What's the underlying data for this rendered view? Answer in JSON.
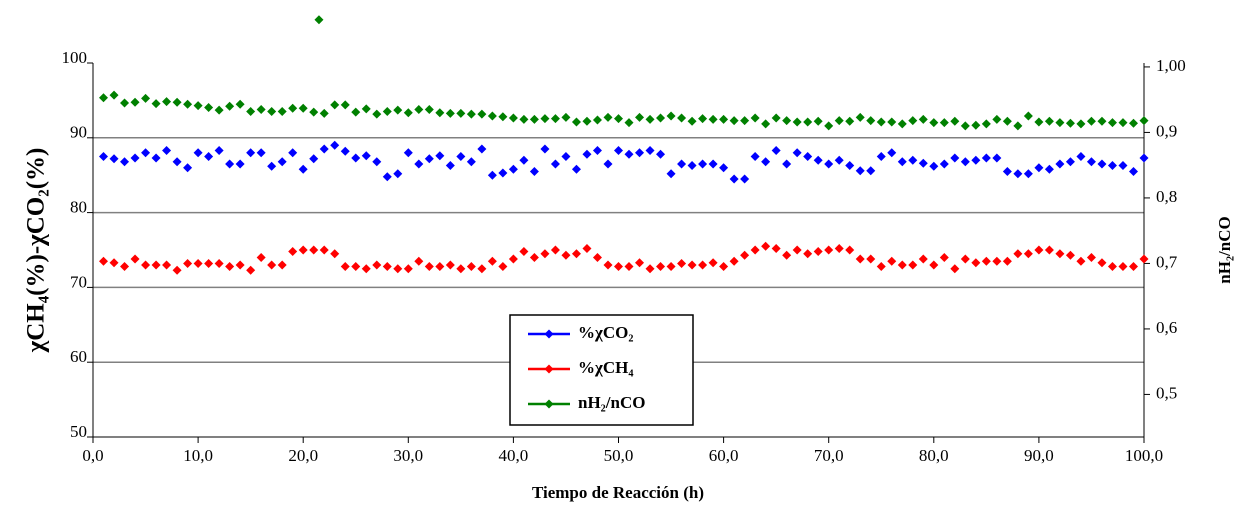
{
  "chart_data": {
    "type": "scatter",
    "x_label": "Tiempo de Reacción (h)",
    "y_label": "χCH₄(%)-χCO₂(%)",
    "y2_label": "nH₂/nCO",
    "xlim": [
      0,
      100
    ],
    "xticks": [
      {
        "value": 0,
        "label": "0,0"
      },
      {
        "value": 10,
        "label": "10,0"
      },
      {
        "value": 20,
        "label": "20,0"
      },
      {
        "value": 30,
        "label": "30,0"
      },
      {
        "value": 40,
        "label": "40,0"
      },
      {
        "value": 50,
        "label": "50,0"
      },
      {
        "value": 60,
        "label": "60,0"
      },
      {
        "value": 70,
        "label": "70,0"
      },
      {
        "value": 80,
        "label": "80,0"
      },
      {
        "value": 90,
        "label": "90,0"
      },
      {
        "value": 100,
        "label": "100,0"
      }
    ],
    "ylim": [
      50,
      100
    ],
    "yticks": [
      50,
      60,
      70,
      80,
      90,
      100
    ],
    "y2lim": [
      0.435,
      1.006
    ],
    "y2ticks": [
      {
        "value": 0.5,
        "label": "0,5"
      },
      {
        "value": 0.6,
        "label": "0,6"
      },
      {
        "value": 0.7,
        "label": "0,7"
      },
      {
        "value": 0.8,
        "label": "0,8"
      },
      {
        "value": 0.9,
        "label": "0,9"
      },
      {
        "value": 1.0,
        "label": "1,00"
      }
    ],
    "grid": true,
    "x": [
      1,
      2,
      3,
      4,
      5,
      6,
      7,
      8,
      9,
      10,
      11,
      12,
      13,
      14,
      15,
      16,
      17,
      18,
      19,
      20,
      21,
      22,
      23,
      24,
      25,
      26,
      27,
      28,
      29,
      30,
      31,
      32,
      33,
      34,
      35,
      36,
      37,
      38,
      39,
      40,
      41,
      42,
      43,
      44,
      45,
      46,
      47,
      48,
      49,
      50,
      51,
      52,
      53,
      54,
      55,
      56,
      57,
      58,
      59,
      60,
      61,
      62,
      63,
      64,
      65,
      66,
      67,
      68,
      69,
      70,
      71,
      72,
      73,
      74,
      75,
      76,
      77,
      78,
      79,
      80,
      81,
      82,
      83,
      84,
      85,
      86,
      87,
      88,
      89,
      90,
      91,
      92,
      93,
      94,
      95,
      96,
      97,
      98,
      99,
      100
    ],
    "series": [
      {
        "name": "%χCO₂",
        "color": "#0000ff",
        "values": [
          87.5,
          87.2,
          86.8,
          87.3,
          88,
          87.3,
          88.3,
          86.8,
          86,
          88,
          87.5,
          88.3,
          86.5,
          86.5,
          88,
          88,
          86.2,
          86.8,
          88,
          85.8,
          87.2,
          88.5,
          89,
          88.2,
          87.3,
          87.6,
          86.8,
          84.8,
          85.2,
          88,
          86.5,
          87.2,
          87.6,
          86.3,
          87.5,
          86.8,
          88.5,
          85,
          85.3,
          85.8,
          87,
          85.5,
          88.5,
          86.5,
          87.5,
          85.8,
          87.8,
          88.3,
          86.5,
          88.3,
          87.8,
          88,
          88.3,
          87.8,
          85.2,
          86.5,
          86.3,
          86.5,
          86.5,
          86,
          84.5,
          84.5,
          87.5,
          86.8,
          88.3,
          86.5,
          88,
          87.5,
          87,
          86.5,
          87,
          86.3,
          85.6,
          85.6,
          87.5,
          88,
          86.8,
          87,
          86.6,
          86.2,
          86.5,
          87.3,
          86.8,
          87,
          87.3,
          87.3,
          85.5,
          85.2,
          85.2,
          86,
          85.8,
          86.5,
          86.8,
          87.5,
          86.8,
          86.5,
          86.3,
          86.3,
          85.5,
          87.3
        ]
      },
      {
        "name": "%χCH₄",
        "color": "#ff0000",
        "values": [
          73.5,
          73.3,
          72.8,
          73.8,
          73,
          73,
          73,
          72.3,
          73.2,
          73.2,
          73.2,
          73.2,
          72.8,
          73,
          72.3,
          74,
          73,
          73,
          74.8,
          75,
          75,
          75,
          74.5,
          72.8,
          72.8,
          72.5,
          73,
          72.8,
          72.5,
          72.5,
          73.5,
          72.8,
          72.8,
          73,
          72.5,
          72.8,
          72.5,
          73.5,
          72.8,
          73.8,
          74.8,
          74,
          74.5,
          75,
          74.3,
          74.5,
          75.2,
          74,
          73,
          72.8,
          72.8,
          73.3,
          72.5,
          72.8,
          72.8,
          73.2,
          73,
          73,
          73.3,
          72.8,
          73.5,
          74.3,
          75,
          75.5,
          75.2,
          74.3,
          75,
          74.5,
          74.8,
          75,
          75.2,
          75,
          73.8,
          73.8,
          72.8,
          73.5,
          73,
          73,
          73.8,
          73,
          74,
          72.5,
          73.8,
          73.3,
          73.5,
          73.5,
          73.5,
          74.5,
          74.5,
          75,
          75,
          74.5,
          74.3,
          73.5,
          74,
          73.3,
          72.8,
          72.8,
          72.8,
          73.8
        ]
      },
      {
        "name": "nH₂/nCO",
        "color": "#008000",
        "axis": "y2",
        "values": [
          0.953,
          0.957,
          0.945,
          0.946,
          0.952,
          0.944,
          0.947,
          0.946,
          0.943,
          0.941,
          0.938,
          0.934,
          0.94,
          0.943,
          0.932,
          0.935,
          0.932,
          0.932,
          0.937,
          0.937,
          0.931,
          0.929,
          0.942,
          0.942,
          0.931,
          0.936,
          0.928,
          0.932,
          0.934,
          0.93,
          0.935,
          0.935,
          0.93,
          0.929,
          0.929,
          0.928,
          0.928,
          0.925,
          0.924,
          0.922,
          0.92,
          0.92,
          0.921,
          0.921,
          0.923,
          0.916,
          0.917,
          0.919,
          0.923,
          0.921,
          0.915,
          0.923,
          0.92,
          0.922,
          0.925,
          0.922,
          0.917,
          0.921,
          0.92,
          0.92,
          0.918,
          0.918,
          0.922,
          0.913,
          0.922,
          0.918,
          0.916,
          0.916,
          0.917,
          0.91,
          0.918,
          0.917,
          0.923,
          0.918,
          0.916,
          0.916,
          0.913,
          0.918,
          0.92,
          0.915,
          0.915,
          0.917,
          0.91,
          0.911,
          0.913,
          0.92,
          0.917,
          0.91,
          0.925,
          0.916,
          0.917,
          0.915,
          0.914,
          0.913,
          0.917,
          0.917,
          0.915,
          0.915,
          0.914,
          0.918
        ]
      }
    ],
    "extra_points": [
      {
        "series": 2,
        "x": 21.5,
        "value": 1.072
      }
    ]
  }
}
